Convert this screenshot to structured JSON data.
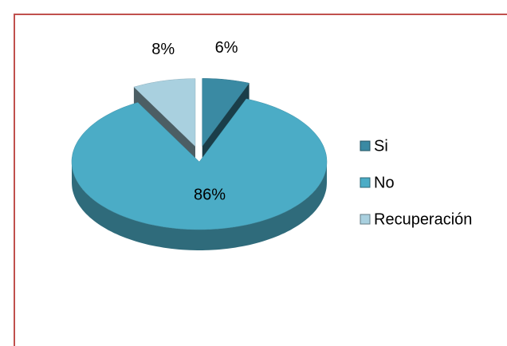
{
  "chart_data": {
    "type": "pie",
    "categories": [
      "Si",
      "No",
      "Recuperación"
    ],
    "values": [
      6,
      86,
      8
    ],
    "value_labels": [
      "6%",
      "86%",
      "8%"
    ],
    "colors": [
      "#3a8aa3",
      "#4bacc6",
      "#a9d0df"
    ],
    "exploded": [
      true,
      false,
      true
    ],
    "legend": "right"
  }
}
